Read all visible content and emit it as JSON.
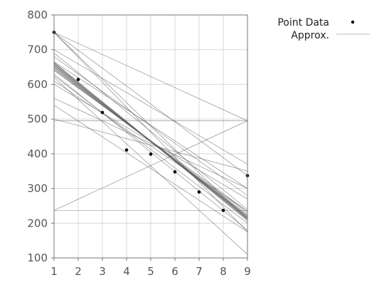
{
  "chart_data": {
    "type": "line",
    "xlim": [
      1,
      9
    ],
    "ylim": [
      100,
      800
    ],
    "x_ticks": [
      1,
      2,
      3,
      4,
      5,
      6,
      7,
      8,
      9
    ],
    "y_ticks": [
      100,
      200,
      300,
      400,
      500,
      600,
      700,
      800
    ],
    "grid": true,
    "legend_position": "top-right, outside plot",
    "legend": {
      "point_label": "Point Data",
      "line_label": "Approx."
    },
    "point_series": {
      "name": "Point Data",
      "x": [
        1,
        2,
        3,
        4,
        5,
        6,
        7,
        8,
        9
      ],
      "y": [
        750,
        614,
        519,
        411,
        399,
        348,
        290,
        237,
        337
      ]
    },
    "approx_lines": [
      {
        "y_start": 658,
        "y_end": 212
      },
      {
        "y_start": 655,
        "y_end": 215
      },
      {
        "y_start": 652,
        "y_end": 218
      },
      {
        "y_start": 650,
        "y_end": 220
      },
      {
        "y_start": 648,
        "y_end": 222
      },
      {
        "y_start": 660,
        "y_end": 210
      },
      {
        "y_start": 645,
        "y_end": 225
      },
      {
        "y_start": 662,
        "y_end": 214
      },
      {
        "y_start": 642,
        "y_end": 230
      },
      {
        "y_start": 664,
        "y_end": 207
      },
      {
        "y_start": 640,
        "y_end": 235
      },
      {
        "y_start": 656,
        "y_end": 216
      },
      {
        "y_start": 750,
        "y_end": 210
      },
      {
        "y_start": 750,
        "y_end": 337
      },
      {
        "y_start": 750,
        "y_end": 495
      },
      {
        "y_start": 750,
        "y_end": 175
      },
      {
        "y_start": 495,
        "y_end": 495
      },
      {
        "y_start": 237,
        "y_end": 237
      },
      {
        "y_start": 237,
        "y_end": 495
      },
      {
        "y_start": 680,
        "y_end": 280
      },
      {
        "y_start": 690,
        "y_end": 240
      },
      {
        "y_start": 700,
        "y_end": 370
      },
      {
        "y_start": 610,
        "y_end": 235
      },
      {
        "y_start": 600,
        "y_end": 270
      },
      {
        "y_start": 560,
        "y_end": 300
      },
      {
        "y_start": 500,
        "y_end": 350
      },
      {
        "y_start": 540,
        "y_end": 175
      },
      {
        "y_start": 620,
        "y_end": 110
      },
      {
        "y_start": 630,
        "y_end": 180
      },
      {
        "y_start": 665,
        "y_end": 300
      },
      {
        "y_start": 625,
        "y_end": 200
      }
    ],
    "colors": {
      "point": "#000000",
      "approx_line": "#555555",
      "legend_line": "#bbbbbb",
      "grid": "#d8d8d8",
      "axis": "#777777"
    }
  }
}
